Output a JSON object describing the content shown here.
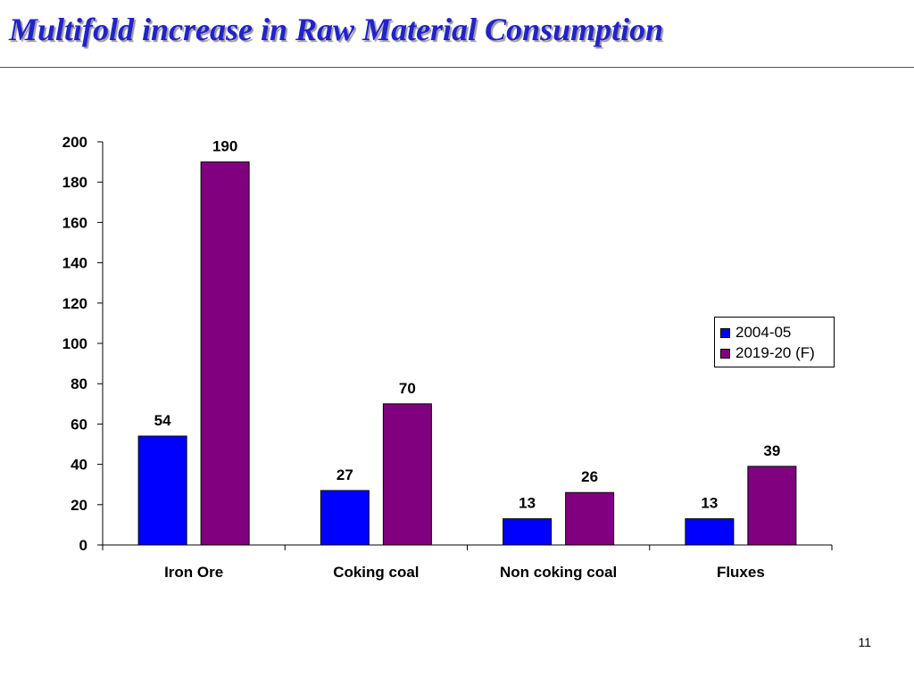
{
  "slide": {
    "title": "Multifold increase in Raw Material Consumption",
    "title_color": "#2222cc",
    "page_number": "11"
  },
  "chart_data": {
    "type": "bar",
    "title": "",
    "xlabel": "",
    "ylabel": "",
    "categories": [
      "Iron Ore",
      "Coking coal",
      "Non coking coal",
      "Fluxes"
    ],
    "series": [
      {
        "name": "2004-05",
        "values": [
          54,
          27,
          13,
          13
        ],
        "color": "#0000ff"
      },
      {
        "name": "2019-20 (F)",
        "values": [
          190,
          70,
          26,
          39
        ],
        "color": "#800080"
      }
    ],
    "ylim": [
      0,
      200
    ],
    "yticks": [
      0,
      20,
      40,
      60,
      80,
      100,
      120,
      140,
      160,
      180,
      200
    ],
    "grid": false,
    "legend_position": "right",
    "data_labels": true
  }
}
